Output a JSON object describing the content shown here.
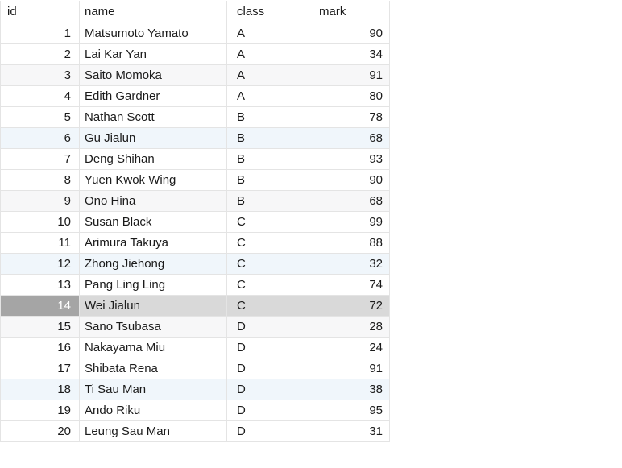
{
  "table": {
    "columns": [
      {
        "key": "id",
        "label": "id"
      },
      {
        "key": "name",
        "label": "name"
      },
      {
        "key": "class",
        "label": "class"
      },
      {
        "key": "mark",
        "label": "mark"
      }
    ],
    "rows": [
      {
        "id": "1",
        "name": "Matsumoto Yamato",
        "class": "A",
        "mark": "90",
        "highlight": "none"
      },
      {
        "id": "2",
        "name": "Lai Kar Yan",
        "class": "A",
        "mark": "34",
        "highlight": "none"
      },
      {
        "id": "3",
        "name": "Saito Momoka",
        "class": "A",
        "mark": "91",
        "highlight": "gray"
      },
      {
        "id": "4",
        "name": "Edith Gardner",
        "class": "A",
        "mark": "80",
        "highlight": "none"
      },
      {
        "id": "5",
        "name": "Nathan Scott",
        "class": "B",
        "mark": "78",
        "highlight": "none"
      },
      {
        "id": "6",
        "name": "Gu Jialun",
        "class": "B",
        "mark": "68",
        "highlight": "blue"
      },
      {
        "id": "7",
        "name": "Deng Shihan",
        "class": "B",
        "mark": "93",
        "highlight": "none"
      },
      {
        "id": "8",
        "name": "Yuen Kwok Wing",
        "class": "B",
        "mark": "90",
        "highlight": "none"
      },
      {
        "id": "9",
        "name": "Ono Hina",
        "class": "B",
        "mark": "68",
        "highlight": "gray"
      },
      {
        "id": "10",
        "name": "Susan Black",
        "class": "C",
        "mark": "99",
        "highlight": "none"
      },
      {
        "id": "11",
        "name": "Arimura Takuya",
        "class": "C",
        "mark": "88",
        "highlight": "none"
      },
      {
        "id": "12",
        "name": "Zhong Jiehong",
        "class": "C",
        "mark": "32",
        "highlight": "blue"
      },
      {
        "id": "13",
        "name": "Pang Ling Ling",
        "class": "C",
        "mark": "74",
        "highlight": "none"
      },
      {
        "id": "14",
        "name": "Wei Jialun",
        "class": "C",
        "mark": "72",
        "highlight": "selected"
      },
      {
        "id": "15",
        "name": "Sano Tsubasa",
        "class": "D",
        "mark": "28",
        "highlight": "gray"
      },
      {
        "id": "16",
        "name": "Nakayama Miu",
        "class": "D",
        "mark": "24",
        "highlight": "none"
      },
      {
        "id": "17",
        "name": "Shibata Rena",
        "class": "D",
        "mark": "91",
        "highlight": "none"
      },
      {
        "id": "18",
        "name": "Ti Sau Man",
        "class": "D",
        "mark": "38",
        "highlight": "blue"
      },
      {
        "id": "19",
        "name": "Ando Riku",
        "class": "D",
        "mark": "95",
        "highlight": "none"
      },
      {
        "id": "20",
        "name": "Leung Sau Man",
        "class": "D",
        "mark": "31",
        "highlight": "none"
      }
    ],
    "selected_row_id": "14"
  },
  "colors": {
    "header_id_bg": "#d5d5d5",
    "row_stripe_gray": "#f7f7f8",
    "row_stripe_blue": "#f0f6fb",
    "selected_id_cell_bg": "#a5a5a5",
    "selected_row_bg": "#d9d9d9",
    "grid_line": "#e4e4e4",
    "text": "#1b1b1b",
    "selected_id_text": "#ffffff"
  }
}
